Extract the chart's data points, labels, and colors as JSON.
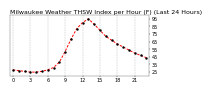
{
  "title": "Milwaukee Weather THSW Index per Hour (F) (Last 24 Hours)",
  "hours": [
    0,
    1,
    2,
    3,
    4,
    5,
    6,
    7,
    8,
    9,
    10,
    11,
    12,
    13,
    14,
    15,
    16,
    17,
    18,
    19,
    20,
    21,
    22,
    23
  ],
  "values": [
    28,
    27,
    26,
    25,
    25,
    26,
    28,
    31,
    38,
    52,
    68,
    82,
    90,
    95,
    88,
    80,
    72,
    67,
    62,
    58,
    54,
    50,
    47,
    44
  ],
  "ylim": [
    20,
    100
  ],
  "line_color": "#ff0000",
  "marker_color": "#000000",
  "bg_color": "#ffffff",
  "grid_color": "#999999",
  "title_color": "#000000",
  "title_fontsize": 4.5,
  "tick_fontsize": 3.5,
  "ytick_vals": [
    25,
    35,
    45,
    55,
    65,
    75,
    85,
    95
  ],
  "xtick_positions": [
    0,
    3,
    6,
    9,
    12,
    15,
    18,
    21
  ],
  "xtick_labels": [
    "0",
    "3",
    "6",
    "9",
    "12",
    "15",
    "18",
    "21"
  ]
}
